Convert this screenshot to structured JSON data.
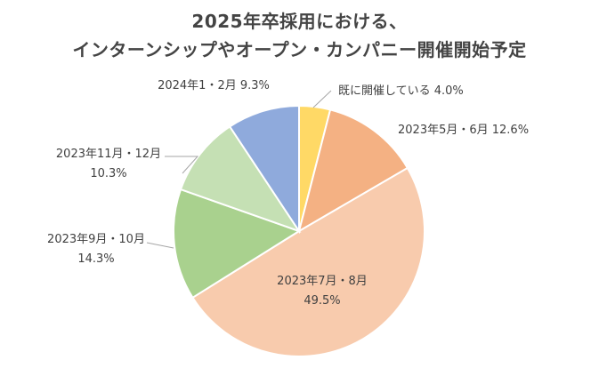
{
  "chart_data": {
    "type": "pie",
    "title_line1": "2025年卒採用における、",
    "title_line2": "インターンシップやオープン・カンパニー開催開始予定",
    "slices": [
      {
        "label": "既に開催している",
        "value": 4.0,
        "display": "4.0%",
        "color": "#FFD966"
      },
      {
        "label": "2023年5月・6月",
        "value": 12.6,
        "display": "12.6%",
        "color": "#F4B183"
      },
      {
        "label": "2023年7月・8月",
        "value": 49.5,
        "display": "49.5%",
        "color": "#F8CBAD"
      },
      {
        "label": "2023年9月・10月",
        "value": 14.3,
        "display": "14.3%",
        "color": "#A9D18E"
      },
      {
        "label": "2023年11月・12月",
        "value": 10.3,
        "display": "10.3%",
        "color": "#C5E0B4"
      },
      {
        "label": "2024年1・2月",
        "value": 9.3,
        "display": "9.3%",
        "color": "#8FAADC"
      }
    ]
  }
}
